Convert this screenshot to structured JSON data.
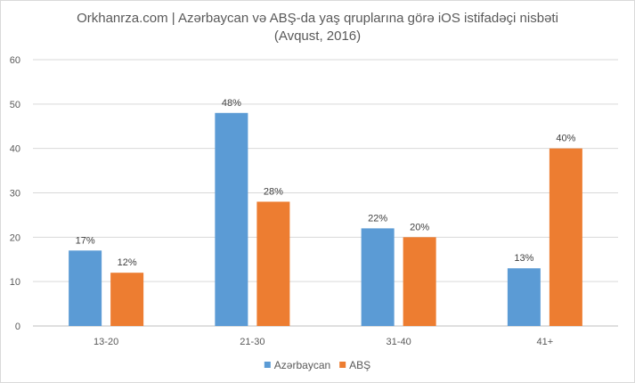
{
  "chart_data": {
    "type": "bar",
    "title_line1": "Orkhanrza.com | Azərbaycan və ABŞ-da yaş qruplarına görə iOS istifadəçi nisbəti",
    "title_line2": "(Avqust, 2016)",
    "categories": [
      "13-20",
      "21-30",
      "31-40",
      "41+"
    ],
    "series": [
      {
        "name": "Azərbaycan",
        "color": "#5b9bd5",
        "values": [
          17,
          48,
          22,
          13
        ],
        "labels": [
          "17%",
          "48%",
          "22%",
          "13%"
        ]
      },
      {
        "name": "ABŞ",
        "color": "#ed7d31",
        "values": [
          12,
          28,
          20,
          40
        ],
        "labels": [
          "12%",
          "28%",
          "20%",
          "40%"
        ]
      }
    ],
    "ylim": [
      0,
      60
    ],
    "yticks": [
      "0",
      "10",
      "20",
      "30",
      "40",
      "50",
      "60"
    ],
    "grid": true,
    "legend_position": "bottom"
  }
}
